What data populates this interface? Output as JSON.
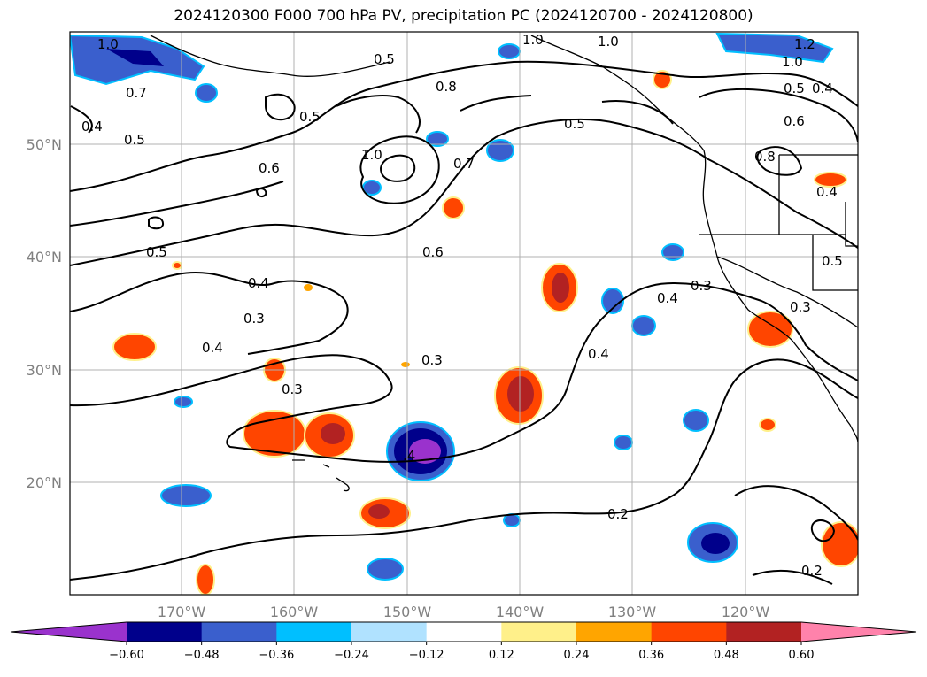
{
  "title": "2024120300 F000 700 hPa PV, precipitation PC (2024120700 - 2024120800)",
  "lat_labels": [
    "50°N",
    "40°N",
    "30°N",
    "20°N"
  ],
  "lon_labels": [
    "170°W",
    "160°W",
    "150°W",
    "140°W",
    "130°W",
    "120°W"
  ],
  "colorbar": {
    "ticks": [
      "−0.60",
      "−0.48",
      "−0.36",
      "−0.24",
      "−0.12",
      "0.12",
      "0.24",
      "0.36",
      "0.48",
      "0.60"
    ],
    "colors": [
      "#9a32cd",
      "#00008b",
      "#3a5fcd",
      "#00bfff",
      "#b0e2ff",
      "#ffffff",
      "#fff08a",
      "#ffa500",
      "#ff4500",
      "#b22222",
      "#ff82ab"
    ]
  },
  "contour_labels": [
    {
      "text": "1.0"
    },
    {
      "text": "0.5"
    },
    {
      "text": "0.7"
    },
    {
      "text": "0.4"
    },
    {
      "text": "0.5"
    },
    {
      "text": "0.6"
    },
    {
      "text": "1.0"
    },
    {
      "text": "0.8"
    },
    {
      "text": "0.5"
    },
    {
      "text": "0.7"
    },
    {
      "text": "0.6"
    },
    {
      "text": "1.0"
    },
    {
      "text": "1.0"
    },
    {
      "text": "0.5"
    },
    {
      "text": "1.2"
    },
    {
      "text": "1.0"
    },
    {
      "text": "0.5"
    },
    {
      "text": "0.4"
    },
    {
      "text": "0.6"
    },
    {
      "text": "0.8"
    },
    {
      "text": "0.4"
    },
    {
      "text": "0.5"
    },
    {
      "text": "0.4"
    },
    {
      "text": "0.3"
    },
    {
      "text": "0.3"
    },
    {
      "text": "0.4"
    },
    {
      "text": "0.3"
    },
    {
      "text": "0.3"
    },
    {
      "text": "0.4"
    },
    {
      "text": "0.3"
    },
    {
      "text": "0.4"
    },
    {
      "text": "0.2"
    },
    {
      "text": "0.2"
    },
    {
      "text": "0.5"
    }
  ]
}
